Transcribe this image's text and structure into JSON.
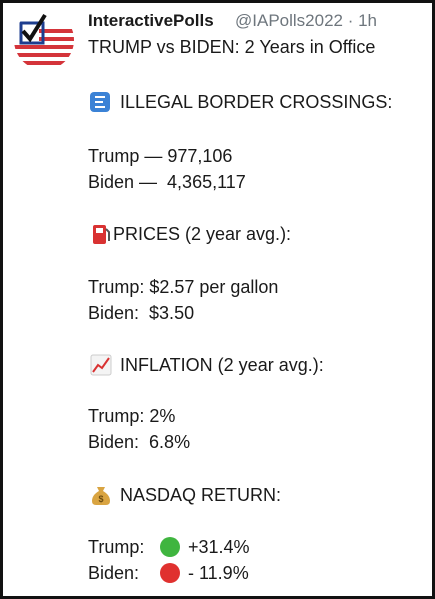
{
  "header": {
    "name": "InteractivePolls",
    "handle_time": "@IAPolls2022 · 1h"
  },
  "body": {
    "title": "TRUMP vs BIDEN: 2 Years in Office",
    "sections": [
      {
        "heading": "ILLEGAL BORDER CROSSINGS:",
        "lines": [
          "Trump — 977,106",
          "Biden —  4,365,117"
        ]
      },
      {
        "heading": "PRICES (2 year avg.):",
        "lines": [
          "Trump: $2.57 per gallon",
          "Biden:  $3.50"
        ]
      },
      {
        "heading": "INFLATION (2 year avg.):",
        "lines": [
          "Trump: 2%",
          "Biden:  6.8%"
        ]
      },
      {
        "heading": "NASDAQ RETURN:",
        "lines": [
          {
            "label": "Trump:",
            "value": "+31.4%"
          },
          {
            "label": "Biden:",
            "value": "- 11.9%"
          }
        ]
      }
    ]
  }
}
